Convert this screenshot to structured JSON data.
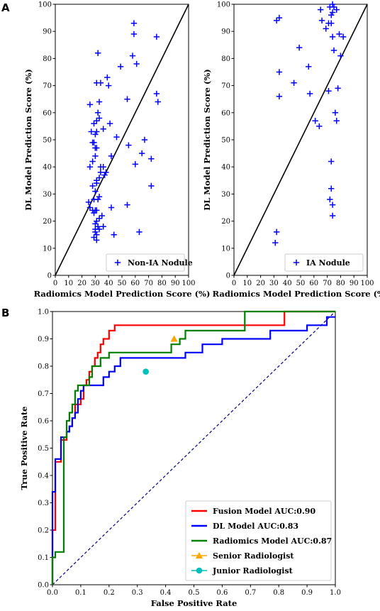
{
  "panel_labels": [
    "A",
    "B"
  ],
  "chart_data": [
    {
      "type": "scatter",
      "panel": "A",
      "xlabel": "Radiomics Model Prediction Score (%)",
      "ylabel": "DL Model Prediction Score (%)",
      "xlim": [
        0,
        100
      ],
      "ylim": [
        0,
        100
      ],
      "xticks": [
        "0",
        "10",
        "20",
        "30",
        "40",
        "50",
        "60",
        "70",
        "80",
        "90",
        "100"
      ],
      "yticks": [
        "0",
        "10",
        "20",
        "30",
        "40",
        "50",
        "60",
        "70",
        "80",
        "90",
        "100"
      ],
      "diagonal": true,
      "legend_position": "bottom-right",
      "series": [
        {
          "name": "Non-IA Nodule",
          "color": "#0000ff",
          "marker": "plus",
          "points": [
            [
              59,
              93
            ],
            [
              59,
              89
            ],
            [
              76,
              88
            ],
            [
              32,
              82
            ],
            [
              58,
              81
            ],
            [
              61,
              78
            ],
            [
              49,
              77
            ],
            [
              39,
              73
            ],
            [
              31,
              71
            ],
            [
              34,
              71
            ],
            [
              40,
              70
            ],
            [
              76,
              67
            ],
            [
              54,
              65
            ],
            [
              33,
              64
            ],
            [
              77,
              64
            ],
            [
              26,
              63
            ],
            [
              32,
              60
            ],
            [
              33,
              58
            ],
            [
              31,
              57
            ],
            [
              29,
              56
            ],
            [
              41,
              56
            ],
            [
              36,
              54
            ],
            [
              27,
              53
            ],
            [
              31,
              53
            ],
            [
              30,
              52
            ],
            [
              46,
              51
            ],
            [
              28,
              49
            ],
            [
              29,
              49
            ],
            [
              67,
              50
            ],
            [
              55,
              48
            ],
            [
              30,
              47
            ],
            [
              31,
              47
            ],
            [
              72,
              43
            ],
            [
              65,
              45
            ],
            [
              30,
              44
            ],
            [
              42,
              44
            ],
            [
              28,
              42
            ],
            [
              36,
              40
            ],
            [
              26,
              40
            ],
            [
              34,
              40
            ],
            [
              60,
              41
            ],
            [
              38,
              38
            ],
            [
              34,
              38
            ],
            [
              37,
              37
            ],
            [
              33,
              36
            ],
            [
              31,
              35
            ],
            [
              31,
              34
            ],
            [
              28,
              33
            ],
            [
              72,
              33
            ],
            [
              30,
              31
            ],
            [
              33,
              29
            ],
            [
              29,
              28
            ],
            [
              32,
              28
            ],
            [
              25,
              27
            ],
            [
              26,
              25
            ],
            [
              28,
              24
            ],
            [
              30,
              24
            ],
            [
              31,
              24
            ],
            [
              29,
              23
            ],
            [
              42,
              25
            ],
            [
              35,
              22
            ],
            [
              33,
              21
            ],
            [
              31,
              20
            ],
            [
              30,
              19
            ],
            [
              32,
              18
            ],
            [
              36,
              18
            ],
            [
              54,
              26
            ],
            [
              30,
              17
            ],
            [
              33,
              17
            ],
            [
              30,
              16
            ],
            [
              31,
              15
            ],
            [
              63,
              16
            ],
            [
              44,
              15
            ],
            [
              29,
              14
            ],
            [
              31,
              13
            ]
          ]
        }
      ]
    },
    {
      "type": "scatter",
      "panel": "A",
      "xlabel": "Radiomics Model Prediction Score (%)",
      "ylabel": "DL Model Prediction Score (%)",
      "xlim": [
        0,
        100
      ],
      "ylim": [
        0,
        100
      ],
      "xticks": [
        "0",
        "10",
        "20",
        "30",
        "40",
        "50",
        "60",
        "70",
        "80",
        "90",
        "100"
      ],
      "yticks": [
        "0",
        "10",
        "20",
        "30",
        "40",
        "50",
        "60",
        "70",
        "80",
        "90",
        "100"
      ],
      "diagonal": true,
      "legend_position": "bottom-right",
      "series": [
        {
          "name": "IA Nodule",
          "color": "#0000ff",
          "marker": "plus",
          "points": [
            [
              74,
              100
            ],
            [
              75,
              99
            ],
            [
              72,
              99
            ],
            [
              77,
              98
            ],
            [
              65,
              98
            ],
            [
              74,
              97
            ],
            [
              73,
              96
            ],
            [
              34,
              95
            ],
            [
              32,
              94
            ],
            [
              66,
              94
            ],
            [
              71,
              93
            ],
            [
              73,
              93
            ],
            [
              69,
              91
            ],
            [
              79,
              89
            ],
            [
              74,
              88
            ],
            [
              82,
              88
            ],
            [
              49,
              84
            ],
            [
              75,
              83
            ],
            [
              80,
              81
            ],
            [
              56,
              77
            ],
            [
              34,
              75
            ],
            [
              45,
              71
            ],
            [
              78,
              69
            ],
            [
              71,
              68
            ],
            [
              57,
              67
            ],
            [
              34,
              66
            ],
            [
              76,
              60
            ],
            [
              77,
              57
            ],
            [
              61,
              57
            ],
            [
              64,
              55
            ],
            [
              73,
              42
            ],
            [
              73,
              32
            ],
            [
              72,
              28
            ],
            [
              74,
              26
            ],
            [
              74,
              22
            ],
            [
              32,
              16
            ],
            [
              31,
              12
            ]
          ]
        }
      ]
    },
    {
      "type": "line",
      "panel": "B",
      "xlabel": "False Positive Rate",
      "ylabel": "True Positive Rate",
      "xlim": [
        0,
        1
      ],
      "ylim": [
        0,
        1
      ],
      "xticks": [
        "0.0",
        "0.1",
        "0.2",
        "0.3",
        "0.4",
        "0.5",
        "0.6",
        "0.7",
        "0.8",
        "0.9",
        "1.0"
      ],
      "yticks": [
        "0.0",
        "0.1",
        "0.2",
        "0.3",
        "0.4",
        "0.5",
        "0.6",
        "0.7",
        "0.8",
        "0.9",
        "1.0"
      ],
      "chance_line": true,
      "legend_position": "bottom-right",
      "series": [
        {
          "name": "Fusion Model AUC:0.90",
          "color": "#ff0000",
          "points": [
            [
              0,
              0
            ],
            [
              0,
              0.1
            ],
            [
              0,
              0.2
            ],
            [
              0.01,
              0.2
            ],
            [
              0.01,
              0.32
            ],
            [
              0.01,
              0.45
            ],
            [
              0.03,
              0.45
            ],
            [
              0.03,
              0.53
            ],
            [
              0.05,
              0.53
            ],
            [
              0.05,
              0.56
            ],
            [
              0.06,
              0.56
            ],
            [
              0.06,
              0.58
            ],
            [
              0.07,
              0.58
            ],
            [
              0.07,
              0.61
            ],
            [
              0.08,
              0.61
            ],
            [
              0.08,
              0.66
            ],
            [
              0.1,
              0.66
            ],
            [
              0.1,
              0.68
            ],
            [
              0.11,
              0.68
            ],
            [
              0.11,
              0.73
            ],
            [
              0.12,
              0.73
            ],
            [
              0.12,
              0.75
            ],
            [
              0.13,
              0.75
            ],
            [
              0.13,
              0.78
            ],
            [
              0.14,
              0.78
            ],
            [
              0.14,
              0.8
            ],
            [
              0.15,
              0.8
            ],
            [
              0.15,
              0.83
            ],
            [
              0.16,
              0.83
            ],
            [
              0.16,
              0.85
            ],
            [
              0.17,
              0.85
            ],
            [
              0.17,
              0.88
            ],
            [
              0.18,
              0.88
            ],
            [
              0.18,
              0.9
            ],
            [
              0.2,
              0.9
            ],
            [
              0.2,
              0.93
            ],
            [
              0.22,
              0.93
            ],
            [
              0.22,
              0.95
            ],
            [
              0.35,
              0.95
            ],
            [
              0.6,
              0.95
            ],
            [
              0.82,
              0.95
            ],
            [
              0.82,
              1.0
            ],
            [
              1.0,
              1.0
            ]
          ]
        },
        {
          "name": "DL Model AUC:0.83",
          "color": "#0000ff",
          "points": [
            [
              0,
              0
            ],
            [
              0,
              0.34
            ],
            [
              0.01,
              0.34
            ],
            [
              0.01,
              0.46
            ],
            [
              0.03,
              0.46
            ],
            [
              0.03,
              0.54
            ],
            [
              0.05,
              0.54
            ],
            [
              0.05,
              0.56
            ],
            [
              0.06,
              0.56
            ],
            [
              0.06,
              0.58
            ],
            [
              0.07,
              0.58
            ],
            [
              0.07,
              0.61
            ],
            [
              0.08,
              0.61
            ],
            [
              0.08,
              0.63
            ],
            [
              0.09,
              0.63
            ],
            [
              0.09,
              0.68
            ],
            [
              0.1,
              0.68
            ],
            [
              0.1,
              0.71
            ],
            [
              0.11,
              0.71
            ],
            [
              0.11,
              0.73
            ],
            [
              0.18,
              0.73
            ],
            [
              0.18,
              0.76
            ],
            [
              0.2,
              0.76
            ],
            [
              0.2,
              0.78
            ],
            [
              0.22,
              0.78
            ],
            [
              0.22,
              0.8
            ],
            [
              0.24,
              0.8
            ],
            [
              0.24,
              0.83
            ],
            [
              0.47,
              0.83
            ],
            [
              0.47,
              0.85
            ],
            [
              0.53,
              0.85
            ],
            [
              0.53,
              0.88
            ],
            [
              0.6,
              0.88
            ],
            [
              0.6,
              0.9
            ],
            [
              0.77,
              0.9
            ],
            [
              0.77,
              0.93
            ],
            [
              0.9,
              0.93
            ],
            [
              0.9,
              0.95
            ],
            [
              0.97,
              0.95
            ],
            [
              0.97,
              0.98
            ],
            [
              1.0,
              0.98
            ]
          ]
        },
        {
          "name": "Radiomics Model AUC:0.87",
          "color": "#008000",
          "points": [
            [
              0,
              0
            ],
            [
              0,
              0.1
            ],
            [
              0.01,
              0.1
            ],
            [
              0.01,
              0.12
            ],
            [
              0.04,
              0.12
            ],
            [
              0.04,
              0.54
            ],
            [
              0.05,
              0.54
            ],
            [
              0.05,
              0.6
            ],
            [
              0.06,
              0.6
            ],
            [
              0.06,
              0.63
            ],
            [
              0.07,
              0.63
            ],
            [
              0.07,
              0.66
            ],
            [
              0.08,
              0.66
            ],
            [
              0.08,
              0.71
            ],
            [
              0.09,
              0.71
            ],
            [
              0.09,
              0.73
            ],
            [
              0.13,
              0.73
            ],
            [
              0.13,
              0.76
            ],
            [
              0.14,
              0.76
            ],
            [
              0.14,
              0.8
            ],
            [
              0.17,
              0.8
            ],
            [
              0.17,
              0.83
            ],
            [
              0.2,
              0.83
            ],
            [
              0.2,
              0.85
            ],
            [
              0.42,
              0.85
            ],
            [
              0.42,
              0.88
            ],
            [
              0.45,
              0.88
            ],
            [
              0.45,
              0.9
            ],
            [
              0.47,
              0.9
            ],
            [
              0.47,
              0.93
            ],
            [
              0.68,
              0.93
            ],
            [
              0.68,
              1.0
            ],
            [
              1.0,
              1.0
            ]
          ]
        },
        {
          "name": "Senior Radiologist",
          "color": "#ffa500",
          "marker": "triangle",
          "point": [
            0.43,
            0.9
          ]
        },
        {
          "name": "Junior Radiologist",
          "color": "#00bfbf",
          "marker": "circle",
          "point": [
            0.33,
            0.78
          ]
        }
      ]
    }
  ]
}
